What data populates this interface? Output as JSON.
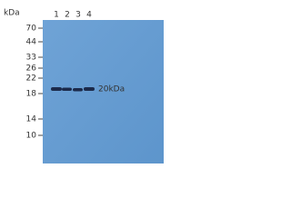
{
  "unit_label": "kDa",
  "lanes": [
    "1",
    "2",
    "3",
    "4"
  ],
  "markers": [
    "70",
    "44",
    "33",
    "26",
    "22",
    "18",
    "14",
    "10"
  ],
  "band_label": "20kDa"
}
